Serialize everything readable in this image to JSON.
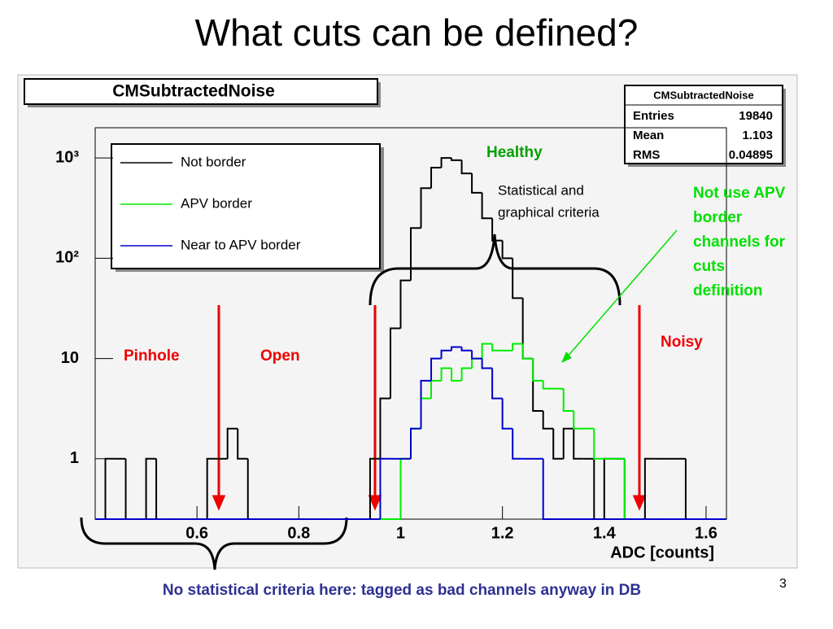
{
  "slide_title": "What cuts can be defined?",
  "page_number": "3",
  "footer_note": "No statistical criteria here: tagged as bad channels anyway in DB",
  "chart_data": {
    "type": "histogram",
    "title": "CMSubtractedNoise",
    "x_label": "ADC [counts]",
    "log_y": true,
    "legend": "top-left",
    "stats": {
      "title": "CMSubtractedNoise",
      "rows": [
        [
          "Entries",
          "19840"
        ],
        [
          "Mean",
          "1.103"
        ],
        [
          "RMS",
          "0.04895"
        ]
      ]
    },
    "bins": [
      0.4,
      0.42,
      0.44,
      0.46,
      0.48,
      0.5,
      0.52,
      0.54,
      0.56,
      0.58,
      0.6,
      0.62,
      0.64,
      0.66,
      0.68,
      0.7,
      0.72,
      0.74,
      0.76,
      0.78,
      0.8,
      0.82,
      0.84,
      0.86,
      0.88,
      0.9,
      0.92,
      0.94,
      0.96,
      0.98,
      1,
      1.02,
      1.04,
      1.06,
      1.08,
      1.1,
      1.12,
      1.14,
      1.16,
      1.18,
      1.2,
      1.22,
      1.24,
      1.26,
      1.28,
      1.3,
      1.32,
      1.34,
      1.36,
      1.38,
      1.4,
      1.42,
      1.44,
      1.46,
      1.48,
      1.5,
      1.52,
      1.54,
      1.56,
      1.58,
      1.6,
      1.62,
      1.64
    ],
    "series": [
      {
        "name": "Not border",
        "color": "#000000",
        "values": [
          0,
          1,
          1,
          0,
          0,
          1,
          0,
          0,
          0,
          0,
          0,
          1,
          1,
          2,
          1,
          0,
          0,
          0,
          0,
          0,
          0,
          0,
          0,
          0,
          0,
          0,
          0,
          1,
          4,
          20,
          60,
          200,
          500,
          800,
          1000,
          950,
          700,
          450,
          250,
          150,
          100,
          40,
          10,
          3,
          2,
          1,
          2,
          1,
          1,
          0,
          1,
          1,
          0,
          0,
          1,
          1,
          1,
          1,
          0,
          0,
          0,
          0
        ]
      },
      {
        "name": "APV border",
        "color": "#00ee00",
        "values": [
          0,
          0,
          0,
          0,
          0,
          0,
          0,
          0,
          0,
          0,
          0,
          0,
          0,
          0,
          0,
          0,
          0,
          0,
          0,
          0,
          0,
          0,
          0,
          0,
          0,
          0,
          0,
          0,
          0,
          0,
          1,
          2,
          4,
          6,
          8,
          6,
          8,
          10,
          14,
          12,
          12,
          14,
          10,
          6,
          5,
          5,
          3,
          2,
          2,
          1,
          1,
          1,
          0,
          0,
          0,
          0,
          0,
          0,
          0,
          0,
          0,
          0
        ]
      },
      {
        "name": "Near to APV border",
        "color": "#0000cc",
        "values": [
          0,
          0,
          0,
          0,
          0,
          0,
          0,
          0,
          0,
          0,
          0,
          0,
          0,
          0,
          0,
          0,
          0,
          0,
          0,
          0,
          0,
          0,
          0,
          0,
          0,
          0,
          0,
          0,
          1,
          1,
          1,
          2,
          6,
          10,
          12,
          13,
          12,
          10,
          8,
          4,
          2,
          1,
          1,
          1,
          0,
          0,
          0,
          0,
          0,
          0,
          0,
          0,
          0,
          0,
          0,
          0,
          0,
          0,
          0,
          0,
          0,
          0
        ]
      }
    ],
    "xlim": [
      0.4,
      1.64
    ],
    "xticks": [
      0.6,
      0.8,
      1,
      1.2,
      1.4,
      1.6
    ],
    "ylim": [
      0.25,
      2000
    ],
    "yticks": [
      1,
      10,
      {
        "value": 100,
        "label": "10²"
      },
      {
        "value": 1000,
        "label": "10³"
      }
    ],
    "annotations": {
      "healthy": "Healthy",
      "criteria": [
        "Statistical and",
        "graphical criteria"
      ],
      "apv_note": [
        "Not use APV",
        "border",
        "channels for",
        "cuts",
        "definition"
      ],
      "pinhole": "Pinhole",
      "open": "Open",
      "noisy": "Noisy"
    }
  }
}
